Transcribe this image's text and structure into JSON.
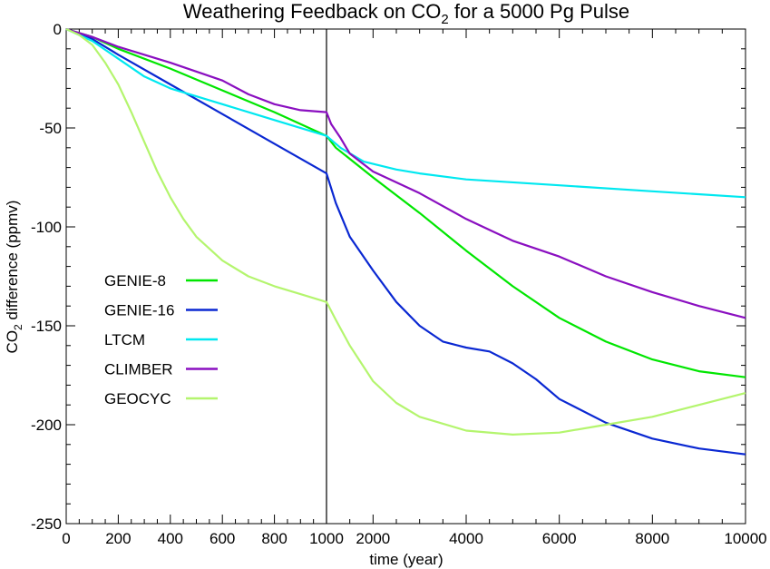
{
  "chart_data": {
    "type": "line",
    "title": "Weathering Feedback on CO2 for a 5000 Pg Pulse",
    "title_parts": {
      "before": "Weathering Feedback on CO",
      "sub": "2",
      "after": " for a 5000 Pg Pulse"
    },
    "xlabel": "time (year)",
    "ylabel": "CO2 difference (ppmv)",
    "ylabel_parts": {
      "before": "CO",
      "sub": "2",
      "after": " difference (ppmv)"
    },
    "x_axis": {
      "scale": "piecewise-linear",
      "breakpoint": 1000,
      "segment1_range": [
        0,
        1000
      ],
      "segment2_range": [
        1000,
        10000
      ],
      "tick_labels": [
        "0",
        "200",
        "400",
        "600",
        "800",
        "1000",
        "2000",
        "4000",
        "6000",
        "8000",
        "10000"
      ],
      "tick_values": [
        0,
        200,
        400,
        600,
        800,
        1000,
        2000,
        4000,
        6000,
        8000,
        10000
      ]
    },
    "y_axis": {
      "range": [
        -250,
        0
      ],
      "tick_labels": [
        "0",
        "-50",
        "-100",
        "-150",
        "-200",
        "-250"
      ],
      "tick_values": [
        0,
        -50,
        -100,
        -150,
        -200,
        -250
      ]
    },
    "vertical_reference_line": {
      "x": 1000,
      "color": "#000000"
    },
    "legend_position": "left-center",
    "series": [
      {
        "name": "GENIE-8",
        "color": "#00e600",
        "points": [
          [
            0,
            0
          ],
          [
            100,
            -4
          ],
          [
            200,
            -10
          ],
          [
            400,
            -20
          ],
          [
            600,
            -31
          ],
          [
            800,
            -42
          ],
          [
            1000,
            -54
          ],
          [
            1200,
            -60
          ],
          [
            2000,
            -75
          ],
          [
            3000,
            -93
          ],
          [
            4000,
            -112
          ],
          [
            5000,
            -130
          ],
          [
            6000,
            -146
          ],
          [
            7000,
            -158
          ],
          [
            8000,
            -167
          ],
          [
            9000,
            -173
          ],
          [
            10000,
            -176
          ]
        ]
      },
      {
        "name": "GENIE-16",
        "color": "#0a28d2",
        "points": [
          [
            0,
            0
          ],
          [
            100,
            -5
          ],
          [
            200,
            -13
          ],
          [
            400,
            -28
          ],
          [
            600,
            -43
          ],
          [
            800,
            -58
          ],
          [
            1000,
            -73
          ],
          [
            1200,
            -88
          ],
          [
            1500,
            -105
          ],
          [
            2000,
            -122
          ],
          [
            2500,
            -138
          ],
          [
            3000,
            -150
          ],
          [
            3500,
            -158
          ],
          [
            4000,
            -161
          ],
          [
            4500,
            -163
          ],
          [
            5000,
            -169
          ],
          [
            5500,
            -177
          ],
          [
            6000,
            -187
          ],
          [
            7000,
            -199
          ],
          [
            8000,
            -207
          ],
          [
            9000,
            -212
          ],
          [
            10000,
            -215
          ]
        ]
      },
      {
        "name": "LTCM",
        "color": "#00e8f0",
        "points": [
          [
            0,
            0
          ],
          [
            100,
            -6
          ],
          [
            200,
            -15
          ],
          [
            300,
            -24
          ],
          [
            400,
            -30
          ],
          [
            600,
            -38
          ],
          [
            800,
            -46
          ],
          [
            1000,
            -54
          ],
          [
            1300,
            -60
          ],
          [
            1800,
            -67
          ],
          [
            2500,
            -71
          ],
          [
            3000,
            -73
          ],
          [
            4000,
            -76
          ],
          [
            6000,
            -79
          ],
          [
            8000,
            -82
          ],
          [
            10000,
            -85
          ]
        ]
      },
      {
        "name": "CLIMBER",
        "color": "#8a0fc0",
        "points": [
          [
            0,
            0
          ],
          [
            100,
            -4
          ],
          [
            200,
            -9
          ],
          [
            400,
            -17
          ],
          [
            600,
            -26
          ],
          [
            700,
            -33
          ],
          [
            800,
            -38
          ],
          [
            900,
            -41
          ],
          [
            1000,
            -42
          ],
          [
            1100,
            -48
          ],
          [
            1300,
            -55
          ],
          [
            1500,
            -63
          ],
          [
            2000,
            -72
          ],
          [
            3000,
            -83
          ],
          [
            4000,
            -96
          ],
          [
            5000,
            -107
          ],
          [
            6000,
            -115
          ],
          [
            7000,
            -125
          ],
          [
            8000,
            -133
          ],
          [
            9000,
            -140
          ],
          [
            10000,
            -146
          ]
        ]
      },
      {
        "name": "GEOCYC",
        "color": "#b4f56e",
        "points": [
          [
            0,
            0
          ],
          [
            50,
            -3
          ],
          [
            100,
            -8
          ],
          [
            150,
            -17
          ],
          [
            200,
            -28
          ],
          [
            250,
            -42
          ],
          [
            300,
            -57
          ],
          [
            350,
            -72
          ],
          [
            400,
            -85
          ],
          [
            450,
            -96
          ],
          [
            500,
            -105
          ],
          [
            600,
            -117
          ],
          [
            700,
            -125
          ],
          [
            800,
            -130
          ],
          [
            900,
            -134
          ],
          [
            1000,
            -138
          ],
          [
            1200,
            -147
          ],
          [
            1500,
            -160
          ],
          [
            2000,
            -178
          ],
          [
            2500,
            -189
          ],
          [
            3000,
            -196
          ],
          [
            4000,
            -203
          ],
          [
            5000,
            -205
          ],
          [
            6000,
            -204
          ],
          [
            7000,
            -200
          ],
          [
            8000,
            -196
          ],
          [
            9000,
            -190
          ],
          [
            10000,
            -184
          ]
        ]
      }
    ]
  }
}
